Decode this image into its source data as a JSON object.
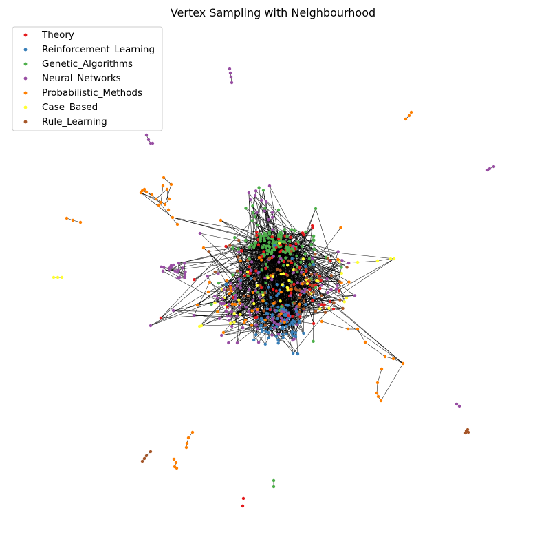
{
  "title": "Vertex Sampling with Neighbourhood",
  "legend": {
    "placement": "upper-left",
    "entries": [
      {
        "label": "Theory",
        "color": "#e41a1c"
      },
      {
        "label": "Reinforcement_Learning",
        "color": "#377eb8"
      },
      {
        "label": "Genetic_Algorithms",
        "color": "#4daf4a"
      },
      {
        "label": "Neural_Networks",
        "color": "#984ea3"
      },
      {
        "label": "Probabilistic_Methods",
        "color": "#ff7f00"
      },
      {
        "label": "Case_Based",
        "color": "#ffff33"
      },
      {
        "label": "Rule_Learning",
        "color": "#a65628"
      }
    ]
  }
}
